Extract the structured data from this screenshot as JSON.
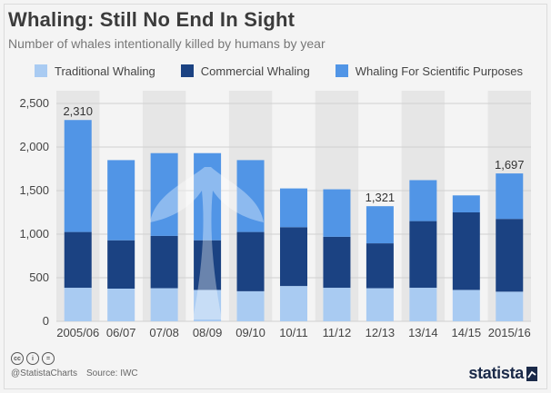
{
  "title": "Whaling: Still No End In Sight",
  "subtitle": "Number of whales intentionally killed by humans by year",
  "legend": [
    {
      "label": "Traditional Whaling",
      "color": "#a9cbf2"
    },
    {
      "label": "Commercial Whaling",
      "color": "#1b4282"
    },
    {
      "label": "Whaling For Scientific Purposes",
      "color": "#5195e6"
    }
  ],
  "footer": {
    "handle": "@StatistaCharts",
    "source": "Source: IWC",
    "brand": "statista"
  },
  "chart_data": {
    "type": "bar",
    "stacked": true,
    "categories": [
      "2005/06",
      "06/07",
      "07/08",
      "08/09",
      "09/10",
      "10/11",
      "11/12",
      "12/13",
      "13/14",
      "14/15",
      "2015/16"
    ],
    "series": [
      {
        "name": "Traditional Whaling",
        "color": "#a9cbf2",
        "values": [
          385,
          375,
          380,
          360,
          345,
          405,
          385,
          380,
          385,
          360,
          340
        ]
      },
      {
        "name": "Commercial Whaling",
        "color": "#1b4282",
        "values": [
          640,
          555,
          600,
          570,
          680,
          675,
          585,
          515,
          765,
          890,
          835
        ]
      },
      {
        "name": "Whaling For Scientific Purposes",
        "color": "#5195e6",
        "values": [
          1285,
          920,
          950,
          1000,
          825,
          445,
          545,
          426,
          470,
          195,
          522
        ]
      }
    ],
    "data_labels": [
      {
        "category": "2005/06",
        "text": "2,310"
      },
      {
        "category": "12/13",
        "text": "1,321"
      },
      {
        "category": "2015/16",
        "text": "1,697"
      }
    ],
    "yticks": [
      "0",
      "500",
      "1,000",
      "1,500",
      "2,000",
      "2,500"
    ],
    "ylim": [
      0,
      2500
    ],
    "grid": true
  }
}
